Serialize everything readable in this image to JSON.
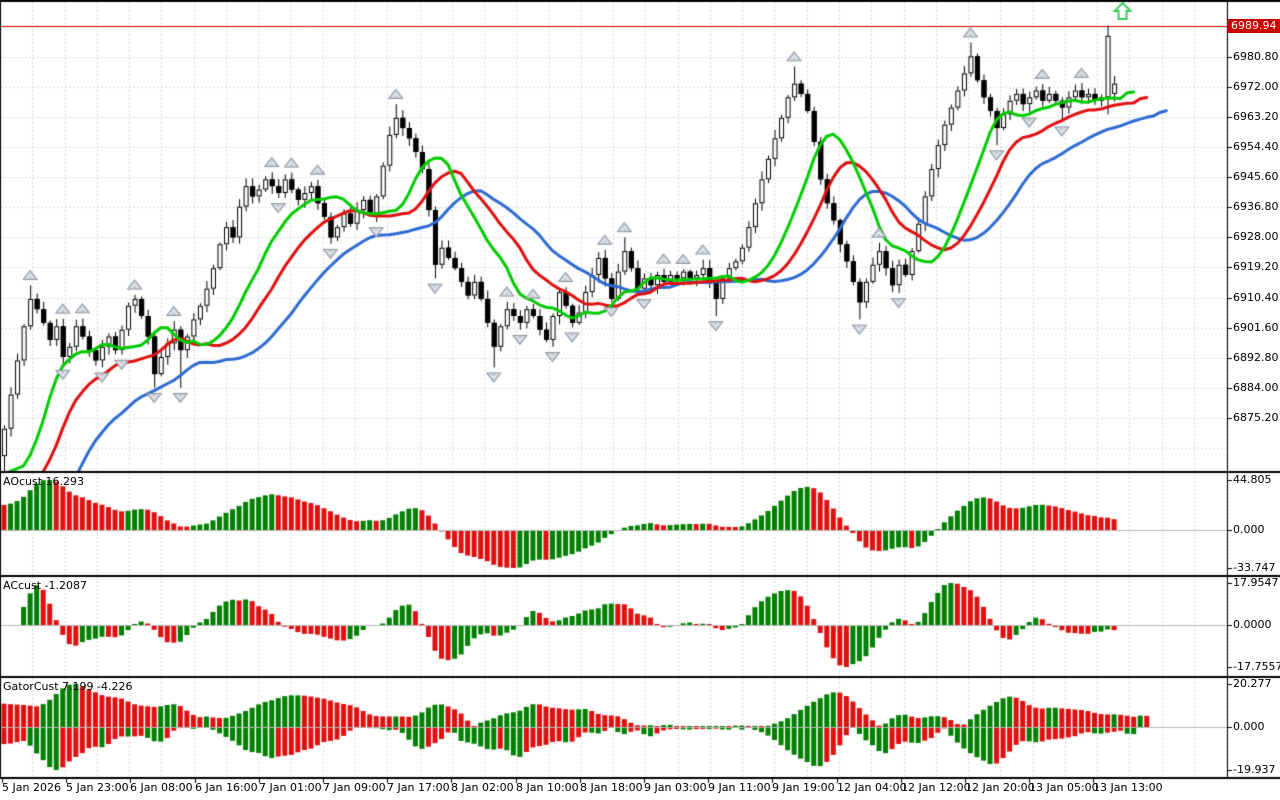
{
  "app": {
    "kind": "trading-terminal-chart"
  },
  "colors": {
    "background": "#ffffff",
    "grid": "#dcdcdc",
    "zero_line": "#b8b8b8",
    "candle_up_fill": "#ffffff",
    "candle_down_fill": "#000000",
    "candle_border": "#000000",
    "histogram_up": "#008000",
    "histogram_down": "#e01010",
    "alligator_jaw": "#2e6bd4",
    "alligator_teeth": "#e01010",
    "alligator_lips": "#00cc00",
    "price_line": "#cc0000",
    "badge_bg": "#cc0000",
    "badge_text": "#ffffff",
    "fractal_fill": "#c4c9d2",
    "fractal_edge": "#8d939e",
    "signal_arrow": "#3ccb5a",
    "axis_text": "#000000",
    "border": "#000000"
  },
  "main": {
    "price_line": {
      "price": 6989.94,
      "label": "6989.94"
    },
    "signal_arrow": {
      "shape": "up-block-arrow",
      "near_price": 6990,
      "note": "green outlined up arrow above last spike candle"
    }
  },
  "panels": {
    "ao": {
      "title": "AOcust 16.293",
      "axis_labels": [
        "44.805",
        "0.000",
        "-33.747"
      ]
    },
    "ac": {
      "title": "ACcust -1.2087",
      "axis_labels": [
        "17.9547",
        "0.0000",
        "-17.7557"
      ]
    },
    "gator": {
      "title": "GatorCust 7.199 -4.226",
      "axis_labels": [
        "20.277",
        "0.000",
        "-19.937"
      ]
    }
  },
  "chart_data": {
    "type": "candlestick",
    "legend_position": "none",
    "grid": "dotted",
    "y_axis": {
      "labels": [
        "6980.80",
        "6972.00",
        "6963.20",
        "6954.40",
        "6945.60",
        "6936.80",
        "6928.00",
        "6919.20",
        "6910.40",
        "6901.60",
        "6892.80",
        "6884.00",
        "6875.20"
      ],
      "step": 8.8,
      "highlight_label": "6989.94"
    },
    "x_axis": {
      "labels": [
        "5 Jan 2026",
        "5 Jan 23:00",
        "6 Jan 08:00",
        "6 Jan 16:00",
        "7 Jan 01:00",
        "7 Jan 09:00",
        "7 Jan 17:00",
        "8 Jan 02:00",
        "8 Jan 10:00",
        "8 Jan 18:00",
        "9 Jan 03:00",
        "9 Jan 11:00",
        "9 Jan 19:00",
        "12 Jan 04:00",
        "12 Jan 12:00",
        "12 Jan 20:00",
        "13 Jan 05:00",
        "13 Jan 13:00"
      ]
    },
    "candles": {
      "history_closes": [
        6806,
        6809,
        6807,
        6812,
        6816,
        6814,
        6819,
        6822,
        6820,
        6825,
        6829,
        6827,
        6832,
        6835,
        6833,
        6838,
        6842,
        6840,
        6845,
        6848,
        6846,
        6851,
        6855,
        6853,
        6857,
        6860,
        6858,
        6861,
        6863,
        6860,
        6862,
        6865,
        6863,
        6864
      ],
      "closes": [
        6872,
        6882,
        6892,
        6902,
        6910,
        6907,
        6903,
        6898,
        6902,
        6893,
        6896,
        6902,
        6899,
        6895,
        6892,
        6896,
        6899,
        6895,
        6901,
        6908,
        6910,
        6905,
        6899,
        6888,
        6893,
        6897,
        6901,
        6895,
        6899,
        6904,
        6908,
        6913,
        6919,
        6926,
        6931,
        6928,
        6937,
        6943,
        6940,
        6942,
        6945,
        6943,
        6941,
        6945,
        6942,
        6939,
        6941,
        6943,
        6938,
        6934,
        6928,
        6931,
        6935,
        6932,
        6936,
        6939,
        6935,
        6940,
        6949,
        6958,
        6963,
        6960,
        6957,
        6953,
        6948,
        6936,
        6920,
        6925,
        6922,
        6919,
        6915,
        6911,
        6915,
        6910,
        6903,
        6896,
        6902,
        6907,
        6905,
        6903,
        6907,
        6905,
        6901,
        6898,
        6905,
        6912,
        6908,
        6903,
        6906,
        6912,
        6917,
        6922,
        6916,
        6910,
        6918,
        6924,
        6919,
        6913,
        6916,
        6914,
        6917,
        6915,
        6917,
        6916,
        6918,
        6916,
        6917,
        6919,
        6915,
        6910,
        6916,
        6919,
        6921,
        6925,
        6931,
        6938,
        6945,
        6951,
        6957,
        6963,
        6969,
        6973,
        6970,
        6965,
        6956,
        6945,
        6938,
        6933,
        6926,
        6921,
        6915,
        6909,
        6915,
        6920,
        6924,
        6919,
        6914,
        6920,
        6917,
        6924,
        6932,
        6940,
        6948,
        6955,
        6961,
        6966,
        6971,
        6976,
        6981,
        6974,
        6969,
        6965,
        6960,
        6964,
        6968,
        6970,
        6967,
        6969,
        6971,
        6968,
        6970,
        6968,
        6966,
        6969,
        6971,
        6969,
        6970,
        6968,
        6969,
        6987,
        6973
      ],
      "wick_overrides": {
        "0": [
          1,
          8
        ],
        "4": [
          4,
          1
        ],
        "23": [
          1,
          4
        ],
        "27": [
          1,
          11
        ],
        "60": [
          4,
          1
        ],
        "66": [
          1,
          4
        ],
        "75": [
          1,
          6
        ],
        "95": [
          4,
          1
        ],
        "109": [
          1,
          5
        ],
        "121": [
          5,
          1
        ],
        "131": [
          1,
          5
        ],
        "148": [
          4,
          1
        ],
        "152": [
          1,
          5
        ],
        "162": [
          1,
          4
        ],
        "169": [
          3,
          5
        ]
      },
      "open_overrides": {
        "170": 6970
      }
    },
    "overlays": {
      "alligator": {
        "jaw": {
          "period": 13,
          "shift": 8,
          "color": "#2e6bd4"
        },
        "teeth": {
          "period": 8,
          "shift": 5,
          "color": "#e01010"
        },
        "lips": {
          "period": 5,
          "shift": 3,
          "color": "#00cc00"
        }
      },
      "fractals": {
        "marker": "gray-arrow"
      }
    },
    "indicators": [
      {
        "id": "ao",
        "name": "AOcust",
        "current": 16.293,
        "scale_max": 44.805,
        "scale_min": -33.747
      },
      {
        "id": "ac",
        "name": "ACcust",
        "current": -1.2087,
        "scale_max": 17.9547,
        "scale_min": -17.7557
      },
      {
        "id": "gator",
        "name": "GatorCust",
        "current": [
          7.199,
          -4.226
        ],
        "scale_max": 20.277,
        "scale_min": -19.937
      }
    ]
  }
}
